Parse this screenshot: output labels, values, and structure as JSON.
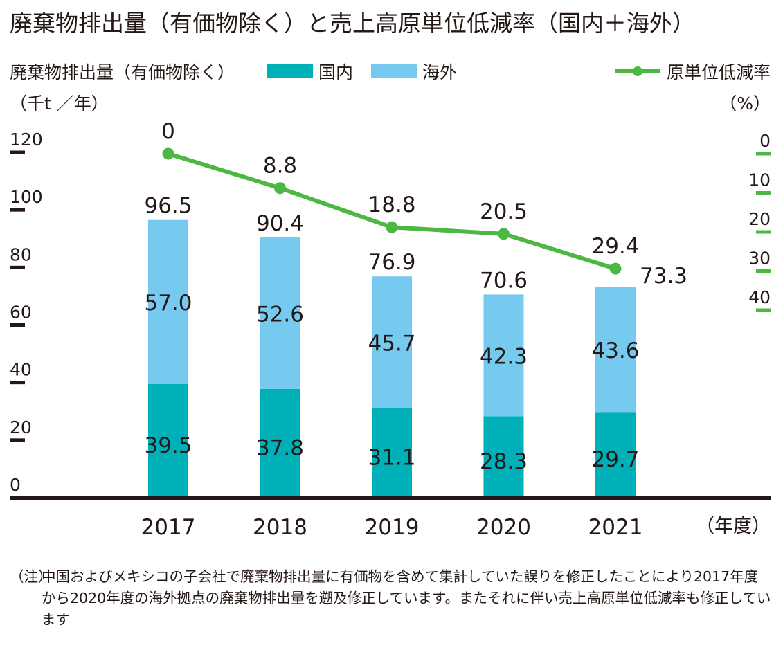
{
  "title": "廃棄物排出量（有価物除く）と売上高原単位低減率（国内＋海外）",
  "legend": {
    "left_label": "廃棄物排出量（有価物除く）",
    "domestic": "国内",
    "overseas": "海外",
    "rate": "原単位低減率"
  },
  "units": {
    "left": "（千t ／年）",
    "right": "（%）",
    "x": "（年度）"
  },
  "note": {
    "tag": "（注）",
    "text": "中国およびメキシコの子会社で廃棄物排出量に有価物を含めて集計していた誤りを修正したことにより2017年度から2020年度の海外拠点の廃棄物排出量を遡及修正しています。またそれに伴い売上高原単位低減率も修正しています"
  },
  "colors": {
    "domestic": "#00b0b9",
    "overseas": "#76c9ef",
    "rate": "#4cb843",
    "axis": "#231815",
    "right_ticks": "#4cb843"
  },
  "chart_data": {
    "type": "bar",
    "stacked": true,
    "categories": [
      "2017",
      "2018",
      "2019",
      "2020",
      "2021"
    ],
    "series": [
      {
        "name": "国内",
        "values": [
          39.5,
          37.8,
          31.1,
          28.3,
          29.7
        ]
      },
      {
        "name": "海外",
        "values": [
          57.0,
          52.6,
          45.7,
          42.3,
          43.6
        ]
      }
    ],
    "totals": [
      96.5,
      90.4,
      76.9,
      70.6,
      73.3
    ],
    "line": {
      "name": "原単位低減率",
      "values": [
        0,
        8.8,
        18.8,
        20.5,
        29.4
      ]
    },
    "ylabel": "廃棄物排出量（有価物除く）（千t ／年）",
    "ylim": [
      0,
      120
    ],
    "yticks": [
      0,
      20,
      40,
      60,
      80,
      100,
      120
    ],
    "y2label": "（%）",
    "y2lim": [
      0,
      40
    ],
    "y2ticks": [
      0,
      10,
      20,
      30,
      40
    ],
    "y2_inverted": true,
    "xlabel": "（年度）",
    "legend_position": "top"
  }
}
